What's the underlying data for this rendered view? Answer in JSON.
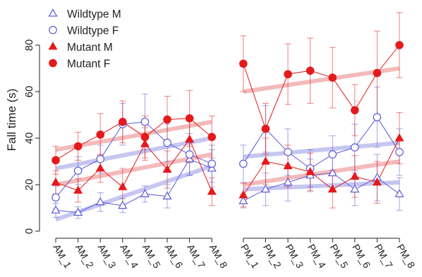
{
  "chart_data": {
    "type": "line",
    "ylabel": "Fall time (s)",
    "ylim": [
      0,
      88
    ],
    "yticks": [
      0,
      20,
      40,
      60,
      80
    ],
    "categories": [
      "AM_1",
      "AM_2",
      "AM_3",
      "AM_4",
      "AM_5",
      "AM_6",
      "AM_7",
      "AM_8",
      "PM_1",
      "PM_2",
      "PM_3",
      "PM_4",
      "PM_5",
      "PM_6",
      "PM_7",
      "PM_8"
    ],
    "session_groups": [
      [
        0,
        7
      ],
      [
        8,
        15
      ]
    ],
    "legend_position": "top-left",
    "series": [
      {
        "name": "Wildtype M",
        "color": "#5b5bd6",
        "trend_color": "#b9b9ee",
        "marker": "triangle-open",
        "values": [
          9,
          8,
          12.5,
          11,
          16,
          15,
          31,
          27,
          13,
          18,
          21,
          24,
          25,
          18,
          23,
          16
        ],
        "err": [
          3,
          2.5,
          4,
          3,
          3.5,
          5,
          7,
          8,
          3,
          7,
          8,
          7,
          8,
          7,
          10,
          7
        ],
        "trend": [
          [
            5,
            28
          ],
          [
            18,
            21
          ]
        ]
      },
      {
        "name": "Wildtype F",
        "color": "#5b5bd6",
        "trend_color": "#b9b9ee",
        "marker": "circle-open",
        "values": [
          14.5,
          26,
          31,
          46,
          47,
          38,
          33,
          29,
          29,
          44,
          34,
          27,
          33,
          36,
          49,
          34
        ],
        "err": [
          5,
          6,
          6,
          9,
          12,
          8,
          9,
          8,
          8,
          10,
          10,
          8,
          8,
          10,
          13,
          10
        ],
        "trend": [
          [
            27,
            40
          ],
          [
            32,
            38
          ]
        ]
      },
      {
        "name": "Mutant M",
        "color": "#e41a1c",
        "trend_color": "#f2aaaa",
        "marker": "triangle-filled",
        "values": [
          21,
          17.5,
          27,
          19,
          37.5,
          26.5,
          39.5,
          17,
          15.5,
          30,
          28,
          25.5,
          18,
          23.5,
          21,
          40
        ],
        "err": [
          5,
          5,
          6,
          8,
          7,
          8,
          10,
          6,
          5,
          10,
          9,
          8,
          8,
          9,
          9,
          11
        ],
        "trend": [
          [
            20,
            33
          ],
          [
            20,
            30
          ]
        ]
      },
      {
        "name": "Mutant F",
        "color": "#e41a1c",
        "trend_color": "#f2aaaa",
        "marker": "circle-filled",
        "values": [
          30.5,
          36.5,
          41.5,
          47,
          40.5,
          48,
          48.5,
          40.5,
          72,
          44,
          67.5,
          69,
          66,
          52,
          68,
          80
        ],
        "err": [
          6,
          6,
          9,
          9,
          9,
          10,
          12,
          9,
          12,
          11,
          13,
          14,
          13,
          11,
          18,
          14
        ],
        "trend": [
          [
            35,
            47
          ],
          [
            60,
            70
          ]
        ]
      }
    ]
  }
}
